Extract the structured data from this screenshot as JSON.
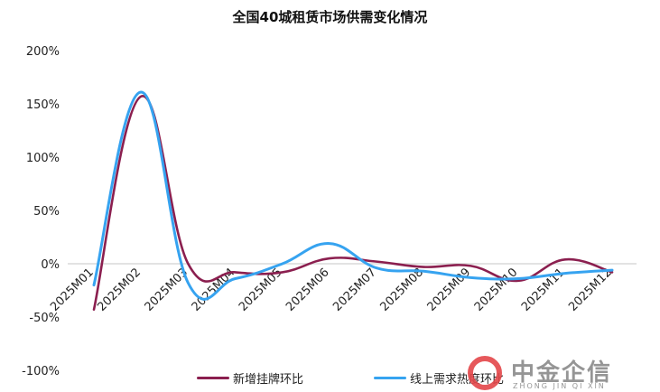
{
  "chart_data": {
    "type": "line",
    "title": "全国40城租赁市场供需变化情况",
    "xlabel": "",
    "ylabel": "",
    "categories": [
      "2025M01",
      "2025M02",
      "2025M03",
      "2025M04",
      "2025M05",
      "2025M06",
      "2025M07",
      "2025M08",
      "2025M09",
      "2025M10",
      "2025M11",
      "2025M12"
    ],
    "series": [
      {
        "name": "新增挂牌环比",
        "color": "#8b1f4f",
        "values": [
          -43,
          157,
          0,
          -8,
          -8,
          5,
          2,
          -3,
          -2,
          -16,
          4,
          -8
        ]
      },
      {
        "name": "线上需求热度环比",
        "color": "#36a3f0",
        "values": [
          -20,
          161,
          -18,
          -14,
          0,
          19,
          -4,
          -7,
          -13,
          -14,
          -9,
          -6
        ]
      }
    ],
    "yticks": [
      "200%",
      "150%",
      "100%",
      "50%",
      "0%",
      "-50%",
      "-100%"
    ],
    "ylim": [
      -100,
      200
    ],
    "grid": false,
    "zero_line": true,
    "legend_position": "bottom",
    "smooth": true
  },
  "legend": [
    {
      "label": "新增挂牌环比",
      "color": "#8b1f4f"
    },
    {
      "label": "线上需求热度环比",
      "color": "#36a3f0"
    }
  ],
  "watermark": {
    "cn": "中金企信",
    "en": "ZHONG JIN QI XIN"
  }
}
